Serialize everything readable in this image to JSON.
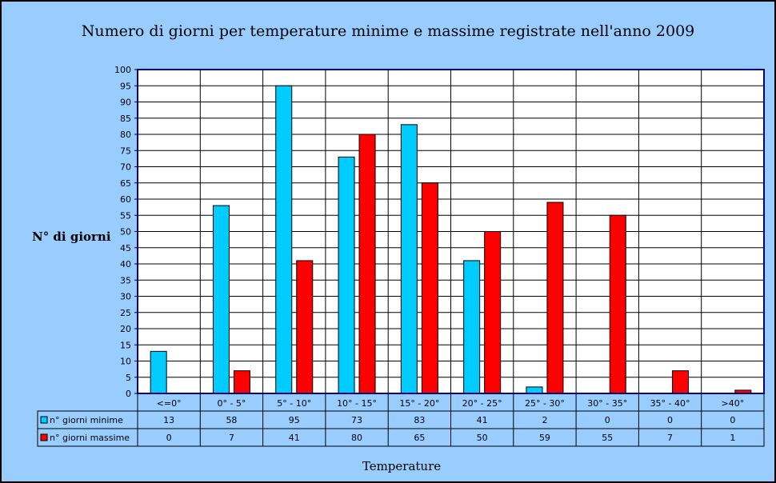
{
  "colors": {
    "minime": "#00ccff",
    "massime": "#ff0000",
    "plot_bg": "#ffffff",
    "frame_bg": "#99ccff",
    "plot_border": "#000080"
  },
  "chart_data": {
    "type": "bar",
    "title": "Numero di giorni per temperature minime e massime registrate nell'anno 2009",
    "xlabel": "Temperature",
    "ylabel": "N° di giorni",
    "ylim": [
      0,
      100
    ],
    "ystep": 5,
    "grid": true,
    "legend": "table",
    "categories": [
      "<=0°",
      "0° - 5°",
      "5° - 10°",
      "10° - 15°",
      "15° - 20°",
      "20° - 25°",
      "25° - 30°",
      "30° - 35°",
      "35° - 40°",
      ">40°"
    ],
    "series": [
      {
        "name": "n° giorni minime",
        "values": [
          13,
          58,
          95,
          73,
          83,
          41,
          2,
          0,
          0,
          0
        ]
      },
      {
        "name": "n° giorni massime",
        "values": [
          0,
          7,
          41,
          80,
          65,
          50,
          59,
          55,
          7,
          1
        ]
      }
    ]
  }
}
